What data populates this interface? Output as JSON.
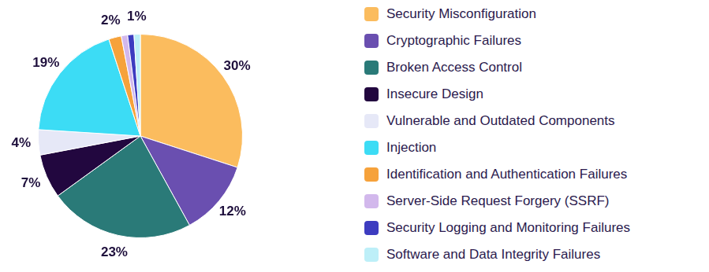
{
  "chart_data": {
    "type": "pie",
    "categories": [
      "Security Misconfiguration",
      "Cryptographic Failures",
      "Broken Access Control",
      "Insecure Design",
      "Vulnerable and Outdated Components",
      "Injection",
      "Identification and Authentication Failures",
      "Server-Side Request Forgery (SSRF)",
      "Security Logging and Monitoring Failures",
      "Software and Data Integrity Failures"
    ],
    "values": [
      30,
      12,
      23,
      7,
      4,
      19,
      2,
      1,
      1,
      1
    ],
    "value_labels": [
      "30%",
      "12%",
      "23%",
      "7%",
      "4%",
      "19%",
      "2%",
      null,
      null,
      "1%"
    ],
    "colors": [
      "#fbbc5e",
      "#6a4fb0",
      "#2a7a78",
      "#22073f",
      "#e6e8f7",
      "#3cdcf5",
      "#f6a23b",
      "#d2b8ec",
      "#3d3cc0",
      "#bdeff8"
    ],
    "data_labels": true,
    "legend": "right"
  }
}
